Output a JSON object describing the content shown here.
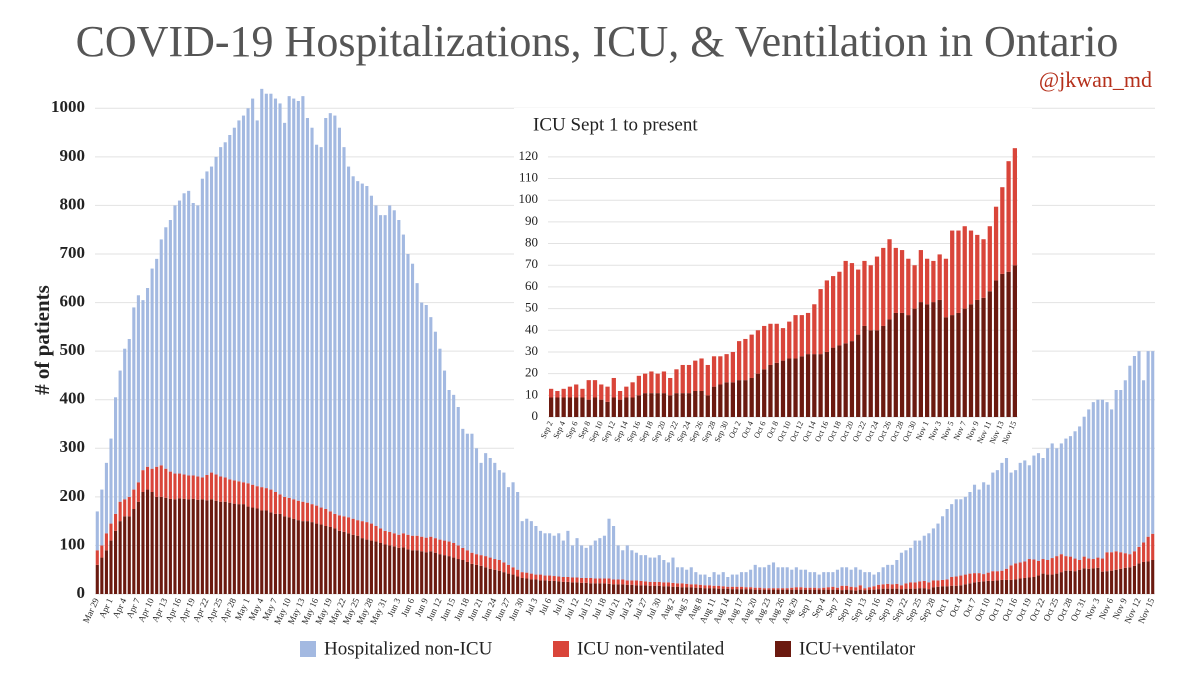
{
  "chart_data": [
    {
      "type": "bar",
      "stacked": true,
      "grid": true,
      "title": "COVID-19 Hospitalizations, ICU, & Ventilation in Ontario",
      "annotation": "@jkwan_md",
      "ylabel": "# of patients",
      "ylim": [
        0,
        1050
      ],
      "yticks": [
        0,
        100,
        200,
        300,
        400,
        500,
        600,
        700,
        800,
        900,
        1000
      ],
      "categories": [
        "Mar 29",
        null,
        null,
        "Apr 1",
        null,
        null,
        "Apr 4",
        null,
        null,
        "Apr 7",
        null,
        null,
        "Apr 10",
        null,
        null,
        "Apr 13",
        null,
        null,
        "Apr 16",
        null,
        null,
        "Apr 19",
        null,
        null,
        "Apr 22",
        null,
        null,
        "Apr 25",
        null,
        null,
        "Apr 28",
        null,
        null,
        "May 1",
        null,
        null,
        "May 4",
        null,
        null,
        "May 7",
        null,
        null,
        "May 10",
        null,
        null,
        "May 13",
        null,
        null,
        "May 16",
        null,
        null,
        "May 19",
        null,
        null,
        "May 22",
        null,
        null,
        "May 25",
        null,
        null,
        "May 28",
        null,
        null,
        "May 31",
        null,
        null,
        "Jun 3",
        null,
        null,
        "Jun 6",
        null,
        null,
        "Jun 9",
        null,
        null,
        "Jun 12",
        null,
        null,
        "Jun 15",
        null,
        null,
        "Jun 18",
        null,
        null,
        "Jun 21",
        null,
        null,
        "Jun 24",
        null,
        null,
        "Jun 27",
        null,
        null,
        "Jun 30",
        null,
        null,
        "Jul 3",
        null,
        null,
        "Jul 6",
        null,
        null,
        "Jul 9",
        null,
        null,
        "Jul 12",
        null,
        null,
        "Jul 15",
        null,
        null,
        "Jul 18",
        null,
        null,
        "Jul 21",
        null,
        null,
        "Jul 24",
        null,
        null,
        "Jul 27",
        null,
        null,
        "Jul 30",
        null,
        null,
        "Aug 2",
        null,
        null,
        "Aug 5",
        null,
        null,
        "Aug 8",
        null,
        null,
        "Aug 11",
        null,
        null,
        "Aug 14",
        null,
        null,
        "Aug 17",
        null,
        null,
        "Aug 20",
        null,
        null,
        "Aug 23",
        null,
        null,
        "Aug 26",
        null,
        null,
        "Aug 29",
        null,
        null,
        "Sep 1",
        null,
        null,
        "Sep 4",
        null,
        null,
        "Sep 7",
        null,
        null,
        "Sep 10",
        null,
        null,
        "Sep 13",
        null,
        null,
        "Sep 16",
        null,
        null,
        "Sep 19",
        null,
        null,
        "Sep 22",
        null,
        null,
        "Sep 25",
        null,
        null,
        "Sep 28",
        null,
        null,
        "Oct 1",
        null,
        null,
        "Oct 4",
        null,
        null,
        "Oct 7",
        null,
        null,
        "Oct 10",
        null,
        null,
        "Oct 13",
        null,
        null,
        "Oct 16",
        null,
        null,
        "Oct 19",
        null,
        null,
        "Oct 22",
        null,
        null,
        "Oct 25",
        null,
        null,
        "Oct 28",
        null,
        null,
        "Oct 31",
        null,
        null,
        "Nov 3",
        null,
        null,
        "Nov 6",
        null,
        null,
        "Nov 9",
        null,
        null,
        "Nov 12",
        null,
        null,
        "Nov 15"
      ],
      "series": [
        {
          "name": "ICU+ventilator",
          "color": "#6b1a10",
          "values": [
            60,
            75,
            90,
            110,
            130,
            150,
            160,
            160,
            175,
            190,
            210,
            215,
            210,
            200,
            200,
            198,
            196,
            195,
            197,
            196,
            195,
            196,
            194,
            195,
            193,
            195,
            192,
            190,
            190,
            188,
            186,
            185,
            185,
            180,
            178,
            176,
            172,
            172,
            168,
            165,
            165,
            160,
            158,
            155,
            152,
            150,
            150,
            148,
            145,
            143,
            140,
            138,
            135,
            130,
            128,
            125,
            122,
            120,
            115,
            112,
            110,
            108,
            105,
            102,
            100,
            98,
            95,
            96,
            92,
            90,
            90,
            88,
            86,
            88,
            85,
            82,
            80,
            78,
            75,
            72,
            70,
            66,
            62,
            60,
            58,
            55,
            52,
            50,
            48,
            45,
            42,
            40,
            36,
            33,
            32,
            30,
            30,
            28,
            28,
            27,
            27,
            26,
            25,
            25,
            24,
            24,
            23,
            23,
            22,
            22,
            22,
            22,
            21,
            20,
            20,
            20,
            19,
            19,
            18,
            18,
            18,
            17,
            17,
            17,
            16,
            16,
            15,
            15,
            14,
            14,
            14,
            13,
            13,
            12,
            12,
            12,
            11,
            11,
            11,
            10,
            10,
            10,
            10,
            10,
            9,
            9,
            9,
            9,
            9,
            9,
            9,
            9,
            9,
            9,
            9,
            9,
            9,
            9,
            9,
            9,
            9,
            9,
            9,
            8,
            9,
            8,
            7,
            9,
            8,
            9,
            9,
            10,
            11,
            11,
            11,
            11,
            10,
            11,
            11,
            11,
            12,
            12,
            10,
            14,
            15,
            16,
            16,
            17,
            17,
            18,
            20,
            22,
            24,
            25,
            26,
            27,
            27,
            28,
            29,
            29,
            29,
            30,
            32,
            33,
            34,
            35,
            38,
            42,
            40,
            40,
            42,
            45,
            48,
            48,
            47,
            50,
            53,
            52,
            53,
            54,
            46,
            47,
            48,
            50,
            52,
            54,
            55,
            58,
            63,
            66,
            67,
            70
          ]
        },
        {
          "name": "ICU non-ventilated",
          "color": "#d9453a",
          "values": [
            30,
            25,
            35,
            35,
            35,
            40,
            35,
            40,
            40,
            40,
            45,
            47,
            48,
            62,
            65,
            60,
            56,
            53,
            51,
            50,
            49,
            48,
            48,
            45,
            52,
            55,
            54,
            52,
            50,
            48,
            48,
            47,
            45,
            48,
            47,
            46,
            48,
            46,
            47,
            45,
            40,
            40,
            40,
            40,
            40,
            40,
            38,
            37,
            37,
            35,
            35,
            32,
            30,
            32,
            32,
            33,
            33,
            32,
            35,
            36,
            35,
            32,
            30,
            28,
            28,
            27,
            27,
            29,
            30,
            30,
            30,
            30,
            30,
            30,
            30,
            30,
            30,
            30,
            30,
            28,
            25,
            24,
            23,
            22,
            22,
            23,
            23,
            22,
            22,
            20,
            18,
            15,
            14,
            12,
            12,
            12,
            10,
            12,
            10,
            11,
            10,
            10,
            10,
            10,
            10,
            10,
            10,
            10,
            11,
            10,
            10,
            10,
            11,
            10,
            10,
            10,
            9,
            9,
            10,
            9,
            8,
            8,
            8,
            8,
            8,
            8,
            8,
            7,
            8,
            7,
            6,
            7,
            6,
            6,
            6,
            5,
            6,
            5,
            4,
            5,
            5,
            5,
            4,
            4,
            4,
            4,
            3,
            3,
            3,
            3,
            3,
            3,
            4,
            5,
            5,
            4,
            4,
            4,
            3,
            4,
            5,
            6,
            4,
            9,
            8,
            7,
            7,
            9,
            4,
            5,
            7,
            9,
            9,
            10,
            9,
            10,
            8,
            11,
            13,
            13,
            14,
            15,
            14,
            14,
            13,
            13,
            14,
            18,
            19,
            20,
            20,
            20,
            19,
            18,
            15,
            17,
            20,
            19,
            19,
            23,
            30,
            33,
            33,
            34,
            38,
            36,
            30,
            30,
            30,
            34,
            36,
            37,
            30,
            29,
            26,
            20,
            24,
            21,
            19,
            21,
            27,
            39,
            38,
            38,
            34,
            30,
            27,
            30,
            34,
            40,
            51,
            54
          ]
        },
        {
          "name": "Hospitalized non-ICU",
          "color": "#a3b9e1",
          "values": [
            80,
            115,
            145,
            175,
            240,
            270,
            310,
            325,
            375,
            385,
            350,
            368,
            412,
            428,
            465,
            497,
            518,
            552,
            562,
            579,
            586,
            561,
            558,
            615,
            625,
            630,
            654,
            678,
            690,
            709,
            726,
            743,
            755,
            772,
            795,
            753,
            820,
            812,
            815,
            810,
            805,
            770,
            827,
            825,
            823,
            835,
            792,
            775,
            743,
            742,
            805,
            820,
            820,
            798,
            760,
            722,
            705,
            698,
            695,
            692,
            675,
            660,
            645,
            650,
            672,
            665,
            648,
            615,
            578,
            560,
            520,
            482,
            479,
            452,
            425,
            393,
            350,
            312,
            305,
            285,
            245,
            240,
            245,
            218,
            190,
            212,
            205,
            198,
            185,
            185,
            160,
            175,
            160,
            105,
            111,
            108,
            100,
            90,
            87,
            87,
            83,
            89,
            75,
            95,
            66,
            81,
            67,
            62,
            67,
            78,
            83,
            88,
            123,
            110,
            70,
            60,
            72,
            62,
            57,
            53,
            54,
            50,
            50,
            55,
            46,
            41,
            52,
            33,
            33,
            29,
            35,
            25,
            21,
            22,
            17,
            28,
            23,
            29,
            20,
            25,
            25,
            30,
            31,
            36,
            47,
            42,
            43,
            48,
            53,
            43,
            43,
            43,
            37,
            41,
            36,
            37,
            32,
            32,
            28,
            32,
            31,
            30,
            37,
            38,
            38,
            35,
            41,
            32,
            33,
            31,
            24,
            26,
            35,
            39,
            40,
            49,
            67,
            68,
            71,
            86,
            84,
            93,
            101,
            107,
            117,
            131,
            145,
            150,
            159,
            157,
            160,
            168,
            182,
            172,
            189,
            181,
            203,
            208,
            222,
            228,
            191,
            192,
            205,
            208,
            193,
            214,
            222,
            208,
            230,
            236,
            222,
            228,
            242,
            248,
            262,
            275,
            288,
            307,
            323,
            325,
            327,
            309,
            294,
            332,
            334,
            356,
            388,
            402,
            403,
            334,
            382,
            376
          ]
        }
      ]
    },
    {
      "type": "bar",
      "stacked": true,
      "grid": true,
      "title": "ICU Sept 1 to present",
      "ylim": [
        0,
        125
      ],
      "yticks": [
        0,
        10,
        20,
        30,
        40,
        50,
        60,
        70,
        80,
        90,
        100,
        110,
        120
      ],
      "categories": [
        "Sep 2",
        null,
        "Sep 4",
        null,
        "Sep 6",
        null,
        "Sep 8",
        null,
        "Sep 10",
        null,
        "Sep 12",
        null,
        "Sep 14",
        null,
        "Sep 16",
        null,
        "Sep 18",
        null,
        "Sep 20",
        null,
        "Sep 22",
        null,
        "Sep 24",
        null,
        "Sep 26",
        null,
        "Sep 28",
        null,
        "Sep 30",
        null,
        "Oct 2",
        null,
        "Oct 4",
        null,
        "Oct 6",
        null,
        "Oct 8",
        null,
        "Oct 10",
        null,
        "Oct 12",
        null,
        "Oct 14",
        null,
        "Oct 16",
        null,
        "Oct 18",
        null,
        "Oct 20",
        null,
        "Oct 22",
        null,
        "Oct 24",
        null,
        "Oct 26",
        null,
        "Oct 28",
        null,
        "Oct 30",
        null,
        "Nov 1",
        null,
        "Nov 3",
        null,
        "Nov 5",
        null,
        "Nov 7",
        null,
        "Nov 9",
        null,
        "Nov 11",
        null,
        "Nov 13",
        null,
        "Nov 15"
      ],
      "series": [
        {
          "color": "#6b1a10",
          "values": [
            9,
            9,
            9,
            9,
            9,
            9,
            8,
            9,
            8,
            7,
            9,
            8,
            9,
            9,
            10,
            11,
            11,
            11,
            11,
            10,
            11,
            11,
            11,
            12,
            12,
            10,
            14,
            15,
            16,
            16,
            17,
            17,
            18,
            20,
            22,
            24,
            25,
            26,
            27,
            27,
            28,
            29,
            29,
            29,
            30,
            32,
            33,
            34,
            35,
            38,
            42,
            40,
            40,
            42,
            45,
            48,
            48,
            47,
            50,
            53,
            52,
            53,
            54,
            46,
            47,
            48,
            50,
            52,
            54,
            55,
            58,
            63,
            66,
            67,
            70
          ]
        },
        {
          "color": "#d9453a",
          "values": [
            4,
            3,
            4,
            5,
            6,
            4,
            9,
            8,
            7,
            7,
            9,
            4,
            5,
            7,
            9,
            9,
            10,
            9,
            10,
            8,
            11,
            13,
            13,
            14,
            15,
            14,
            14,
            13,
            13,
            14,
            18,
            19,
            20,
            20,
            20,
            19,
            18,
            15,
            17,
            20,
            19,
            19,
            23,
            30,
            33,
            33,
            34,
            38,
            36,
            30,
            30,
            30,
            34,
            36,
            37,
            30,
            29,
            26,
            20,
            24,
            21,
            19,
            21,
            27,
            39,
            38,
            38,
            34,
            30,
            27,
            30,
            34,
            40,
            51,
            54
          ]
        }
      ]
    }
  ]
}
